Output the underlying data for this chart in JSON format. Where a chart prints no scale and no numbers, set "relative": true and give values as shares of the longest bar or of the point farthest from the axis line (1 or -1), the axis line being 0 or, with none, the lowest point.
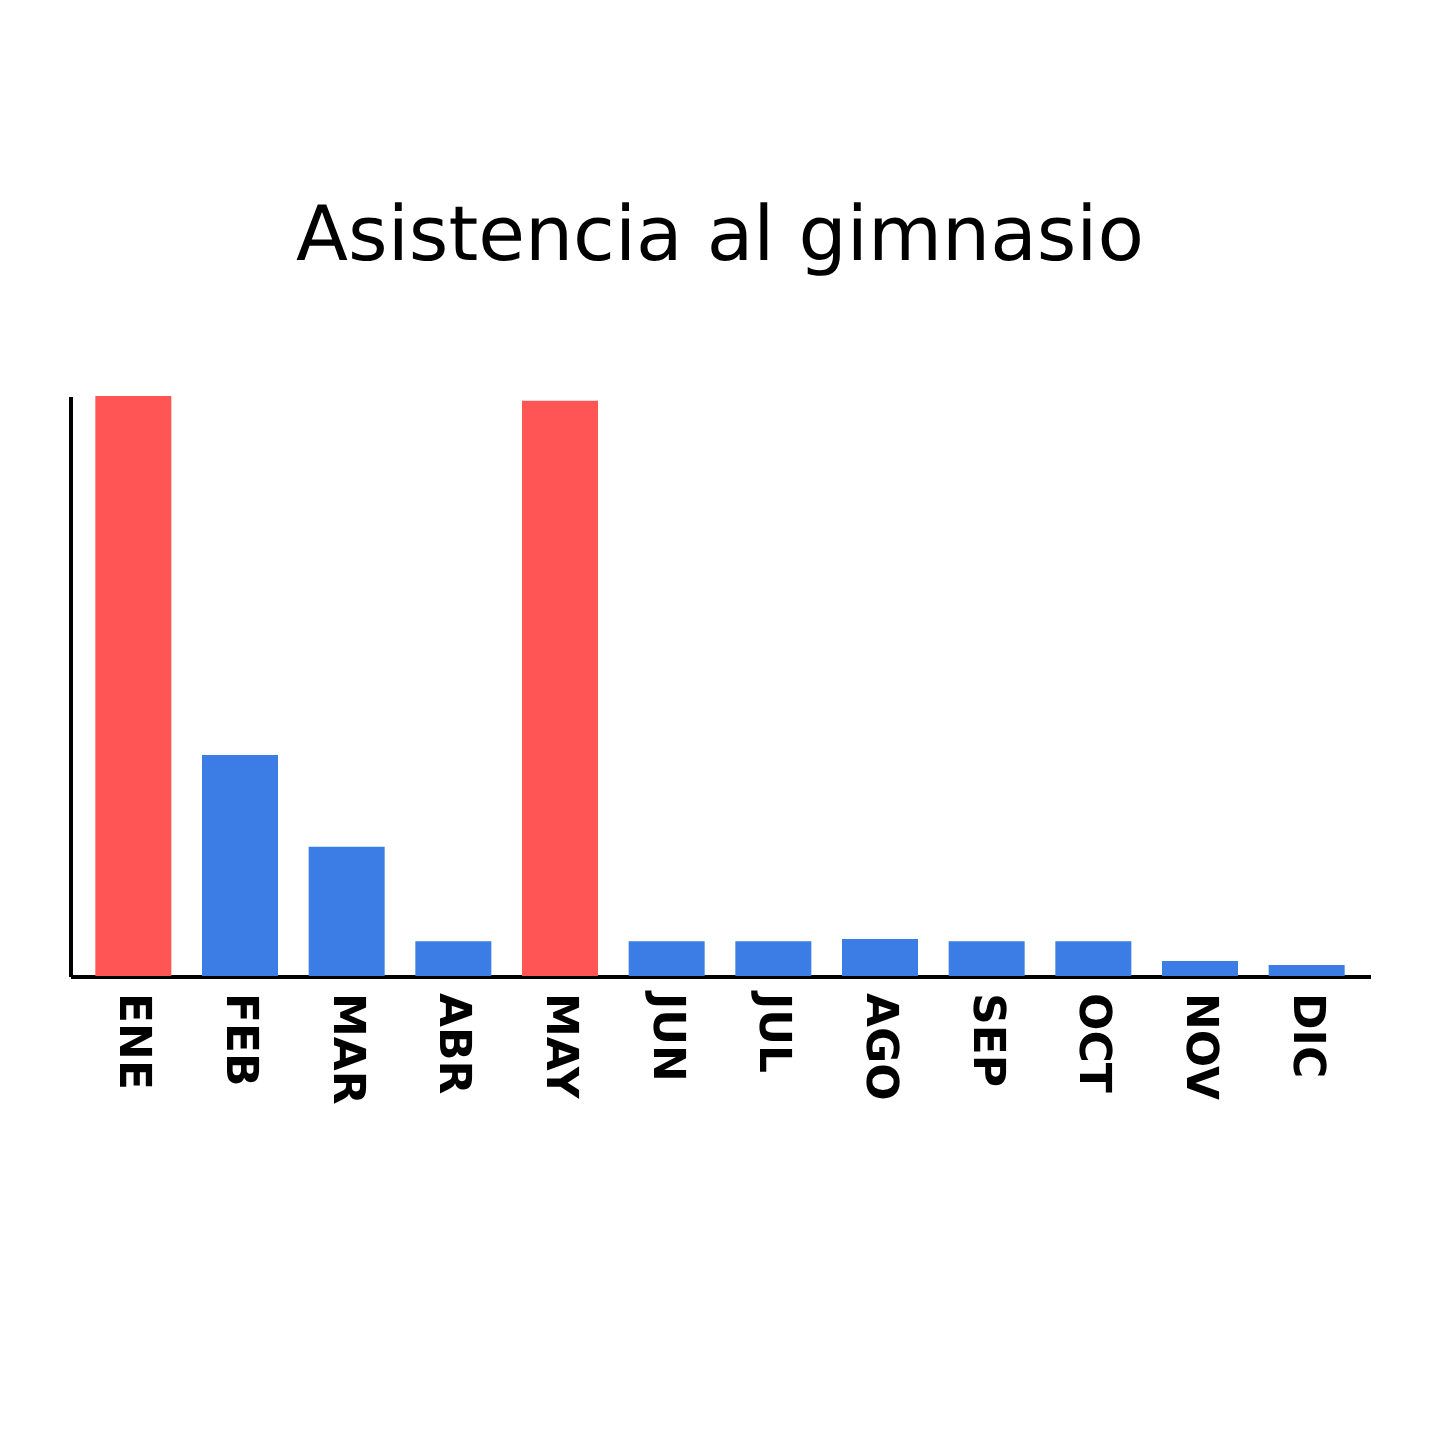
{
  "chart_data": {
    "type": "bar",
    "title": "Asistencia al gimnasio",
    "relative": true,
    "categories": [
      "ENE",
      "FEB",
      "MAR",
      "ABR",
      "MAY",
      "JUN",
      "JUL",
      "AGO",
      "SEP",
      "OCT",
      "NOV",
      "DIC"
    ],
    "values": [
      1,
      0.381,
      0.223,
      0.06,
      0.992,
      0.06,
      0.06,
      0.064,
      0.06,
      0.06,
      0.026,
      0.019
    ],
    "colors": [
      "#ff5555",
      "#3b7de4",
      "#3b7de4",
      "#3b7de4",
      "#ff5555",
      "#3b7de4",
      "#3b7de4",
      "#3b7de4",
      "#3b7de4",
      "#3b7de4",
      "#3b7de4",
      "#3b7de4"
    ],
    "grid": false
  }
}
